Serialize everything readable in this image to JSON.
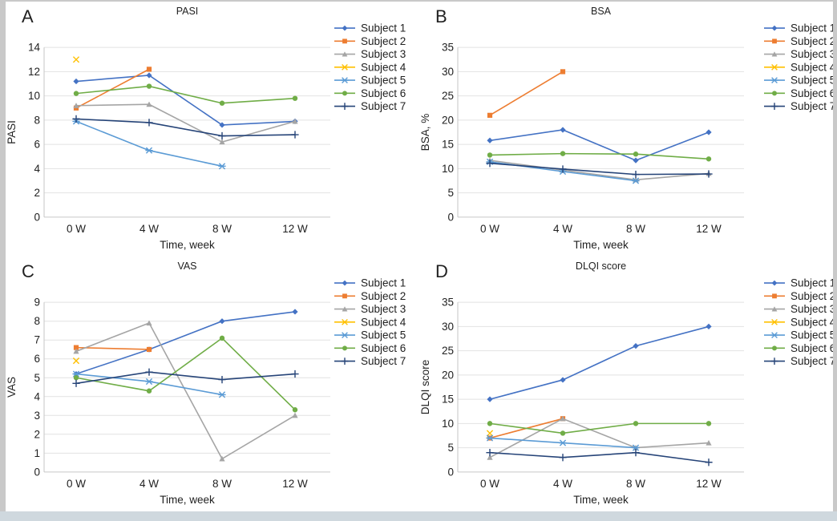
{
  "figure": {
    "background_frame_color": "#c9c9c9",
    "canvas_color": "#ffffff",
    "gridline_color": "#e2e2e2",
    "axis_line_color": "#c6c6c6"
  },
  "subjects": [
    {
      "label": "Subject 1",
      "color": "#4472C4",
      "marker": "diamond"
    },
    {
      "label": "Subject 2",
      "color": "#ED7D31",
      "marker": "square"
    },
    {
      "label": "Subject 3",
      "color": "#A5A5A5",
      "marker": "triangle"
    },
    {
      "label": "Subject 4",
      "color": "#FFC000",
      "marker": "x"
    },
    {
      "label": "Subject 5",
      "color": "#5B9BD5",
      "marker": "asterisk"
    },
    {
      "label": "Subject 6",
      "color": "#70AD47",
      "marker": "circle"
    },
    {
      "label": "Subject 7",
      "color": "#264478",
      "marker": "plus"
    }
  ],
  "chart_data": [
    {
      "type": "line",
      "panel_letter": "A",
      "title": "PASI",
      "xlabel": "Time, week",
      "ylabel": "PASI",
      "categories": [
        "0 W",
        "4 W",
        "8 W",
        "12 W"
      ],
      "ylim": [
        0,
        14
      ],
      "ytick_step": 2,
      "grid": true,
      "legend_position": "right",
      "series": [
        {
          "name": "Subject 1",
          "values": [
            11.2,
            11.7,
            7.6,
            7.9
          ]
        },
        {
          "name": "Subject 2",
          "values": [
            9,
            12.2,
            null,
            null
          ]
        },
        {
          "name": "Subject 3",
          "values": [
            9.2,
            9.3,
            6.2,
            7.9
          ]
        },
        {
          "name": "Subject 4",
          "values": [
            13,
            null,
            null,
            null
          ]
        },
        {
          "name": "Subject 5",
          "values": [
            7.9,
            5.5,
            4.2,
            null
          ]
        },
        {
          "name": "Subject 6",
          "values": [
            10.2,
            10.8,
            9.4,
            9.8
          ]
        },
        {
          "name": "Subject 7",
          "values": [
            8.1,
            7.8,
            6.7,
            6.8
          ]
        }
      ]
    },
    {
      "type": "line",
      "panel_letter": "B",
      "title": "BSA",
      "xlabel": "Time, week",
      "ylabel": "BSA, %",
      "categories": [
        "0 W",
        "4 W",
        "8 W",
        "12 W"
      ],
      "ylim": [
        0,
        35
      ],
      "ytick_step": 5,
      "grid": true,
      "legend_position": "right",
      "series": [
        {
          "name": "Subject 1",
          "values": [
            15.8,
            18,
            11.7,
            17.5
          ]
        },
        {
          "name": "Subject 2",
          "values": [
            21,
            30,
            null,
            null
          ]
        },
        {
          "name": "Subject 3",
          "values": [
            11.7,
            9.7,
            7.7,
            9
          ]
        },
        {
          "name": "Subject 4",
          "values": [
            null,
            null,
            null,
            null
          ]
        },
        {
          "name": "Subject 5",
          "values": [
            11.4,
            9.4,
            7.5,
            null
          ]
        },
        {
          "name": "Subject 6",
          "values": [
            12.8,
            13.1,
            13,
            12
          ]
        },
        {
          "name": "Subject 7",
          "values": [
            11.1,
            9.9,
            8.8,
            8.9
          ]
        }
      ]
    },
    {
      "type": "line",
      "panel_letter": "C",
      "title": "VAS",
      "xlabel": "Time, week",
      "ylabel": "VAS",
      "categories": [
        "0 W",
        "4 W",
        "8 W",
        "12 W"
      ],
      "ylim": [
        0,
        9
      ],
      "ytick_step": 1,
      "grid": true,
      "legend_position": "right",
      "series": [
        {
          "name": "Subject 1",
          "values": [
            5.2,
            6.5,
            8,
            8.5
          ]
        },
        {
          "name": "Subject 2",
          "values": [
            6.6,
            6.5,
            null,
            null
          ]
        },
        {
          "name": "Subject 3",
          "values": [
            6.4,
            7.9,
            0.7,
            3
          ]
        },
        {
          "name": "Subject 4",
          "values": [
            5.9,
            null,
            null,
            null
          ]
        },
        {
          "name": "Subject 5",
          "values": [
            5.2,
            4.8,
            4.1,
            null
          ]
        },
        {
          "name": "Subject 6",
          "values": [
            5,
            4.3,
            7.1,
            3.3
          ]
        },
        {
          "name": "Subject 7",
          "values": [
            4.7,
            5.3,
            4.9,
            5.2
          ]
        }
      ]
    },
    {
      "type": "line",
      "panel_letter": "D",
      "title": "DLQI score",
      "xlabel": "Time, week",
      "ylabel": "DLQI score",
      "categories": [
        "0 W",
        "4 W",
        "8 W",
        "12 W"
      ],
      "ylim": [
        0,
        35
      ],
      "ytick_step": 5,
      "grid": true,
      "legend_position": "right",
      "series": [
        {
          "name": "Subject 1",
          "values": [
            15,
            19,
            26,
            30
          ]
        },
        {
          "name": "Subject 2",
          "values": [
            7,
            11,
            null,
            null
          ]
        },
        {
          "name": "Subject 3",
          "values": [
            3,
            11,
            5,
            6
          ]
        },
        {
          "name": "Subject 4",
          "values": [
            8,
            null,
            null,
            null
          ]
        },
        {
          "name": "Subject 5",
          "values": [
            7,
            6,
            5,
            null
          ]
        },
        {
          "name": "Subject 6",
          "values": [
            10,
            8,
            10,
            10
          ]
        },
        {
          "name": "Subject 7",
          "values": [
            4,
            3,
            4,
            2
          ]
        }
      ]
    }
  ]
}
